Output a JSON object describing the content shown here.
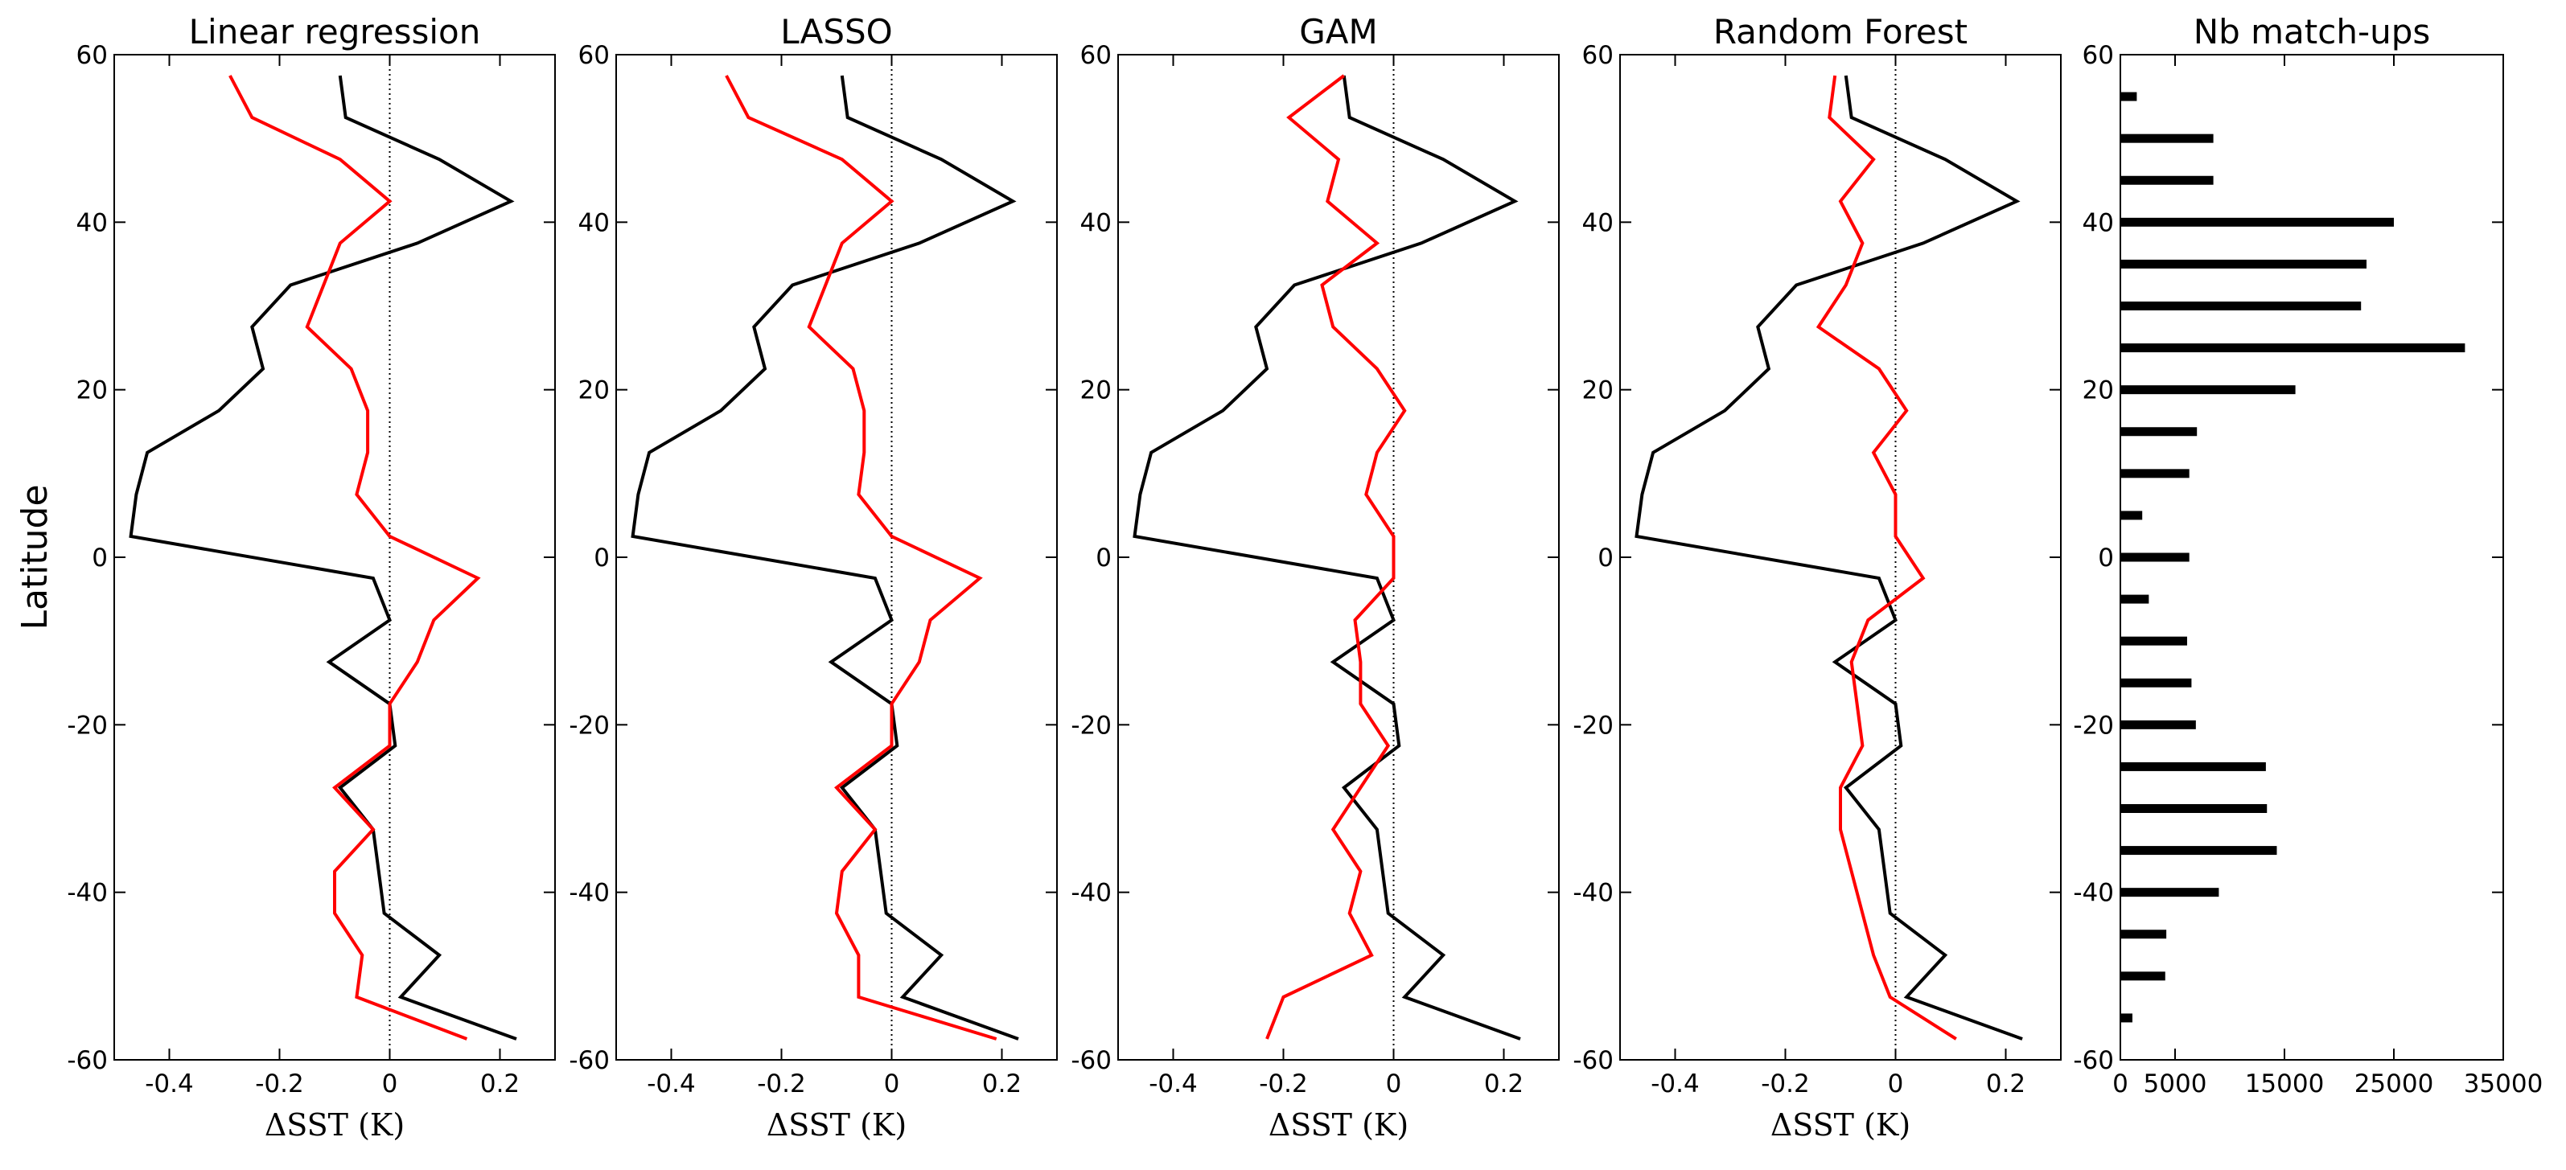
{
  "chart_data": [
    {
      "type": "line",
      "title": "Linear regression",
      "xlabel": "ΔSST (K)",
      "ylabel": "Latitude",
      "xlim": [
        -0.5,
        0.3
      ],
      "ylim": [
        -60,
        60
      ],
      "xticks": [
        -0.4,
        -0.2,
        0,
        0.2
      ],
      "xtick_labels": [
        "-0.4",
        "-0.2",
        "0",
        "0.2"
      ],
      "yticks": [
        60,
        40,
        20,
        0,
        -20,
        -40,
        -60
      ],
      "ytick_labels": [
        "60",
        "40",
        "20",
        "0",
        "-20",
        "-40",
        "-60"
      ],
      "reference_line_x": 0,
      "series": [
        {
          "name": "black",
          "color": "#000000",
          "points": [
            [
              -0.09,
              57.5
            ],
            [
              -0.08,
              52.5
            ],
            [
              0.09,
              47.5
            ],
            [
              0.22,
              42.5
            ],
            [
              0.05,
              37.5
            ],
            [
              -0.18,
              32.5
            ],
            [
              -0.25,
              27.5
            ],
            [
              -0.23,
              22.5
            ],
            [
              -0.31,
              17.5
            ],
            [
              -0.44,
              12.5
            ],
            [
              -0.46,
              7.5
            ],
            [
              -0.47,
              2.5
            ],
            [
              -0.03,
              -2.5
            ],
            [
              0,
              -7.5
            ],
            [
              -0.11,
              -12.5
            ],
            [
              0,
              -17.5
            ],
            [
              0.01,
              -22.5
            ],
            [
              -0.09,
              -27.5
            ],
            [
              -0.03,
              -32.5
            ],
            [
              -0.02,
              -37.5
            ],
            [
              -0.01,
              -42.5
            ],
            [
              0.09,
              -47.5
            ],
            [
              0.02,
              -52.5
            ],
            [
              0.23,
              -57.5
            ]
          ]
        },
        {
          "name": "red",
          "color": "#ff0000",
          "points": [
            [
              -0.29,
              57.5
            ],
            [
              -0.25,
              52.5
            ],
            [
              -0.09,
              47.5
            ],
            [
              0,
              42.5
            ],
            [
              -0.09,
              37.5
            ],
            [
              -0.12,
              32.5
            ],
            [
              -0.15,
              27.5
            ],
            [
              -0.07,
              22.5
            ],
            [
              -0.04,
              17.5
            ],
            [
              -0.04,
              12.5
            ],
            [
              -0.06,
              7.5
            ],
            [
              0,
              2.5
            ],
            [
              0.16,
              -2.5
            ],
            [
              0.08,
              -7.5
            ],
            [
              0.05,
              -12.5
            ],
            [
              0,
              -17.5
            ],
            [
              0,
              -22.5
            ],
            [
              -0.1,
              -27.5
            ],
            [
              -0.03,
              -32.5
            ],
            [
              -0.1,
              -37.5
            ],
            [
              -0.1,
              -42.5
            ],
            [
              -0.05,
              -47.5
            ],
            [
              -0.06,
              -52.5
            ],
            [
              0.14,
              -57.5
            ]
          ]
        }
      ]
    },
    {
      "type": "line",
      "title": "LASSO",
      "xlabel": "ΔSST (K)",
      "xlim": [
        -0.5,
        0.3
      ],
      "ylim": [
        -60,
        60
      ],
      "xticks": [
        -0.4,
        -0.2,
        0,
        0.2
      ],
      "xtick_labels": [
        "-0.4",
        "-0.2",
        "0",
        "0.2"
      ],
      "yticks": [
        60,
        40,
        20,
        0,
        -20,
        -40,
        -60
      ],
      "ytick_labels": [
        "60",
        "40",
        "20",
        "0",
        "-20",
        "-40",
        "-60"
      ],
      "reference_line_x": 0,
      "series": [
        {
          "name": "black",
          "color": "#000000",
          "points": [
            [
              -0.09,
              57.5
            ],
            [
              -0.08,
              52.5
            ],
            [
              0.09,
              47.5
            ],
            [
              0.22,
              42.5
            ],
            [
              0.05,
              37.5
            ],
            [
              -0.18,
              32.5
            ],
            [
              -0.25,
              27.5
            ],
            [
              -0.23,
              22.5
            ],
            [
              -0.31,
              17.5
            ],
            [
              -0.44,
              12.5
            ],
            [
              -0.46,
              7.5
            ],
            [
              -0.47,
              2.5
            ],
            [
              -0.03,
              -2.5
            ],
            [
              0,
              -7.5
            ],
            [
              -0.11,
              -12.5
            ],
            [
              0,
              -17.5
            ],
            [
              0.01,
              -22.5
            ],
            [
              -0.09,
              -27.5
            ],
            [
              -0.03,
              -32.5
            ],
            [
              -0.02,
              -37.5
            ],
            [
              -0.01,
              -42.5
            ],
            [
              0.09,
              -47.5
            ],
            [
              0.02,
              -52.5
            ],
            [
              0.23,
              -57.5
            ]
          ]
        },
        {
          "name": "red",
          "color": "#ff0000",
          "points": [
            [
              -0.3,
              57.5
            ],
            [
              -0.26,
              52.5
            ],
            [
              -0.09,
              47.5
            ],
            [
              0,
              42.5
            ],
            [
              -0.09,
              37.5
            ],
            [
              -0.12,
              32.5
            ],
            [
              -0.15,
              27.5
            ],
            [
              -0.07,
              22.5
            ],
            [
              -0.05,
              17.5
            ],
            [
              -0.05,
              12.5
            ],
            [
              -0.06,
              7.5
            ],
            [
              0,
              2.5
            ],
            [
              0.16,
              -2.5
            ],
            [
              0.07,
              -7.5
            ],
            [
              0.05,
              -12.5
            ],
            [
              0,
              -17.5
            ],
            [
              0,
              -22.5
            ],
            [
              -0.1,
              -27.5
            ],
            [
              -0.03,
              -32.5
            ],
            [
              -0.09,
              -37.5
            ],
            [
              -0.1,
              -42.5
            ],
            [
              -0.06,
              -47.5
            ],
            [
              -0.06,
              -52.5
            ],
            [
              0.19,
              -57.5
            ]
          ]
        }
      ]
    },
    {
      "type": "line",
      "title": "GAM",
      "xlabel": "ΔSST (K)",
      "xlim": [
        -0.5,
        0.3
      ],
      "ylim": [
        -60,
        60
      ],
      "xticks": [
        -0.4,
        -0.2,
        0,
        0.2
      ],
      "xtick_labels": [
        "-0.4",
        "-0.2",
        "0",
        "0.2"
      ],
      "yticks": [
        60,
        40,
        20,
        0,
        -20,
        -40,
        -60
      ],
      "ytick_labels": [
        "60",
        "40",
        "20",
        "0",
        "-20",
        "-40",
        "-60"
      ],
      "reference_line_x": 0,
      "series": [
        {
          "name": "black",
          "color": "#000000",
          "points": [
            [
              -0.09,
              57.5
            ],
            [
              -0.08,
              52.5
            ],
            [
              0.09,
              47.5
            ],
            [
              0.22,
              42.5
            ],
            [
              0.05,
              37.5
            ],
            [
              -0.18,
              32.5
            ],
            [
              -0.25,
              27.5
            ],
            [
              -0.23,
              22.5
            ],
            [
              -0.31,
              17.5
            ],
            [
              -0.44,
              12.5
            ],
            [
              -0.46,
              7.5
            ],
            [
              -0.47,
              2.5
            ],
            [
              -0.03,
              -2.5
            ],
            [
              0,
              -7.5
            ],
            [
              -0.11,
              -12.5
            ],
            [
              0,
              -17.5
            ],
            [
              0.01,
              -22.5
            ],
            [
              -0.09,
              -27.5
            ],
            [
              -0.03,
              -32.5
            ],
            [
              -0.02,
              -37.5
            ],
            [
              -0.01,
              -42.5
            ],
            [
              0.09,
              -47.5
            ],
            [
              0.02,
              -52.5
            ],
            [
              0.23,
              -57.5
            ]
          ]
        },
        {
          "name": "red",
          "color": "#ff0000",
          "points": [
            [
              -0.09,
              57.5
            ],
            [
              -0.19,
              52.5
            ],
            [
              -0.1,
              47.5
            ],
            [
              -0.12,
              42.5
            ],
            [
              -0.03,
              37.5
            ],
            [
              -0.13,
              32.5
            ],
            [
              -0.11,
              27.5
            ],
            [
              -0.03,
              22.5
            ],
            [
              0.02,
              17.5
            ],
            [
              -0.03,
              12.5
            ],
            [
              -0.05,
              7.5
            ],
            [
              0,
              2.5
            ],
            [
              0,
              -2.5
            ],
            [
              -0.07,
              -7.5
            ],
            [
              -0.06,
              -12.5
            ],
            [
              -0.06,
              -17.5
            ],
            [
              -0.01,
              -22.5
            ],
            [
              -0.06,
              -27.5
            ],
            [
              -0.11,
              -32.5
            ],
            [
              -0.06,
              -37.5
            ],
            [
              -0.08,
              -42.5
            ],
            [
              -0.04,
              -47.5
            ],
            [
              -0.2,
              -52.5
            ],
            [
              -0.23,
              -57.5
            ]
          ]
        }
      ]
    },
    {
      "type": "line",
      "title": "Random Forest",
      "xlabel": "ΔSST (K)",
      "xlim": [
        -0.5,
        0.3
      ],
      "ylim": [
        -60,
        60
      ],
      "xticks": [
        -0.4,
        -0.2,
        0,
        0.2
      ],
      "xtick_labels": [
        "-0.4",
        "-0.2",
        "0",
        "0.2"
      ],
      "yticks": [
        60,
        40,
        20,
        0,
        -20,
        -40,
        -60
      ],
      "ytick_labels": [
        "60",
        "40",
        "20",
        "0",
        "-20",
        "-40",
        "-60"
      ],
      "reference_line_x": 0,
      "series": [
        {
          "name": "black",
          "color": "#000000",
          "points": [
            [
              -0.09,
              57.5
            ],
            [
              -0.08,
              52.5
            ],
            [
              0.09,
              47.5
            ],
            [
              0.22,
              42.5
            ],
            [
              0.05,
              37.5
            ],
            [
              -0.18,
              32.5
            ],
            [
              -0.25,
              27.5
            ],
            [
              -0.23,
              22.5
            ],
            [
              -0.31,
              17.5
            ],
            [
              -0.44,
              12.5
            ],
            [
              -0.46,
              7.5
            ],
            [
              -0.47,
              2.5
            ],
            [
              -0.03,
              -2.5
            ],
            [
              0,
              -7.5
            ],
            [
              -0.11,
              -12.5
            ],
            [
              0,
              -17.5
            ],
            [
              0.01,
              -22.5
            ],
            [
              -0.09,
              -27.5
            ],
            [
              -0.03,
              -32.5
            ],
            [
              -0.02,
              -37.5
            ],
            [
              -0.01,
              -42.5
            ],
            [
              0.09,
              -47.5
            ],
            [
              0.02,
              -52.5
            ],
            [
              0.23,
              -57.5
            ]
          ]
        },
        {
          "name": "red",
          "color": "#ff0000",
          "points": [
            [
              -0.11,
              57.5
            ],
            [
              -0.12,
              52.5
            ],
            [
              -0.04,
              47.5
            ],
            [
              -0.1,
              42.5
            ],
            [
              -0.06,
              37.5
            ],
            [
              -0.09,
              32.5
            ],
            [
              -0.14,
              27.5
            ],
            [
              -0.03,
              22.5
            ],
            [
              0.02,
              17.5
            ],
            [
              -0.04,
              12.5
            ],
            [
              0,
              7.5
            ],
            [
              0,
              2.5
            ],
            [
              0.05,
              -2.5
            ],
            [
              -0.05,
              -7.5
            ],
            [
              -0.08,
              -12.5
            ],
            [
              -0.07,
              -17.5
            ],
            [
              -0.06,
              -22.5
            ],
            [
              -0.1,
              -27.5
            ],
            [
              -0.1,
              -32.5
            ],
            [
              -0.08,
              -37.5
            ],
            [
              -0.06,
              -42.5
            ],
            [
              -0.04,
              -47.5
            ],
            [
              -0.01,
              -52.5
            ],
            [
              0.11,
              -57.5
            ]
          ]
        }
      ]
    },
    {
      "type": "bar",
      "orientation": "horizontal",
      "title": "Nb match-ups",
      "xlim": [
        0,
        35000
      ],
      "ylim": [
        -60,
        60
      ],
      "xticks": [
        0,
        5000,
        15000,
        25000,
        35000
      ],
      "xtick_labels": [
        "0",
        "5000",
        "15000",
        "25000",
        "35000"
      ],
      "yticks": [
        60,
        40,
        20,
        0,
        -20,
        -40,
        -60
      ],
      "ytick_labels": [
        "60",
        "40",
        "20",
        "0",
        "-20",
        "-40",
        "-60"
      ],
      "color": "#000000",
      "categories": [
        55,
        50,
        45,
        40,
        35,
        30,
        25,
        20,
        15,
        10,
        5,
        0,
        -5,
        -10,
        -15,
        -20,
        -25,
        -30,
        -35,
        -40,
        -45,
        -50,
        -55
      ],
      "values": [
        1500,
        8500,
        8500,
        25000,
        22500,
        22000,
        31500,
        16000,
        7000,
        6300,
        2000,
        6300,
        2600,
        6100,
        6500,
        6900,
        13300,
        13400,
        14300,
        9000,
        4200,
        4100,
        1100
      ]
    }
  ]
}
